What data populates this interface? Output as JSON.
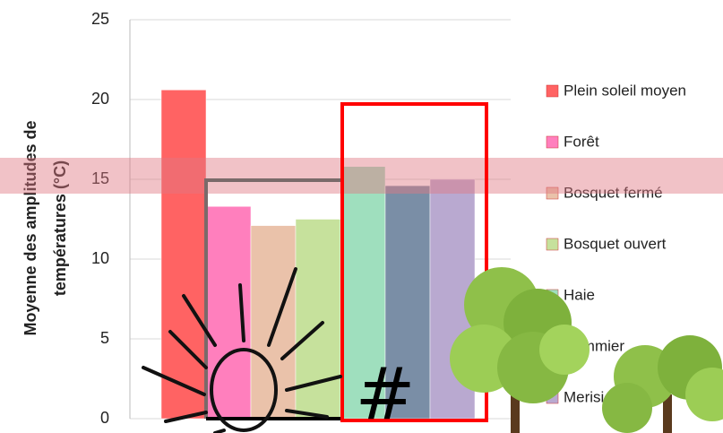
{
  "chart_data": {
    "type": "bar",
    "ylabel": [
      "Moyenne des amplitudes de",
      "températures (°C)"
    ],
    "series": [
      {
        "name": "Plein soleil moyen",
        "color": "#ff6363",
        "values": [
          20.6
        ]
      },
      {
        "name": "Forêt",
        "color": "#ff7fbd",
        "values": [
          13.3
        ]
      },
      {
        "name": "Bosquet fermé",
        "color": "#eac2aa",
        "values": [
          12.1
        ]
      },
      {
        "name": "Bosquet ouvert",
        "color": "#c6e19c",
        "values": [
          12.5
        ]
      },
      {
        "name": "Haie",
        "color": "#9fdfbe",
        "values": [
          15.8
        ]
      },
      {
        "name": "Pommier",
        "color": "#7a8ea6",
        "values": [
          14.6
        ]
      },
      {
        "name": "Merisier",
        "color": "#b9a9d0",
        "values": [
          15.0
        ]
      }
    ],
    "ylim": [
      0,
      25
    ],
    "yticks": [
      0,
      5,
      10,
      15,
      20,
      25
    ],
    "grid": true
  }
}
